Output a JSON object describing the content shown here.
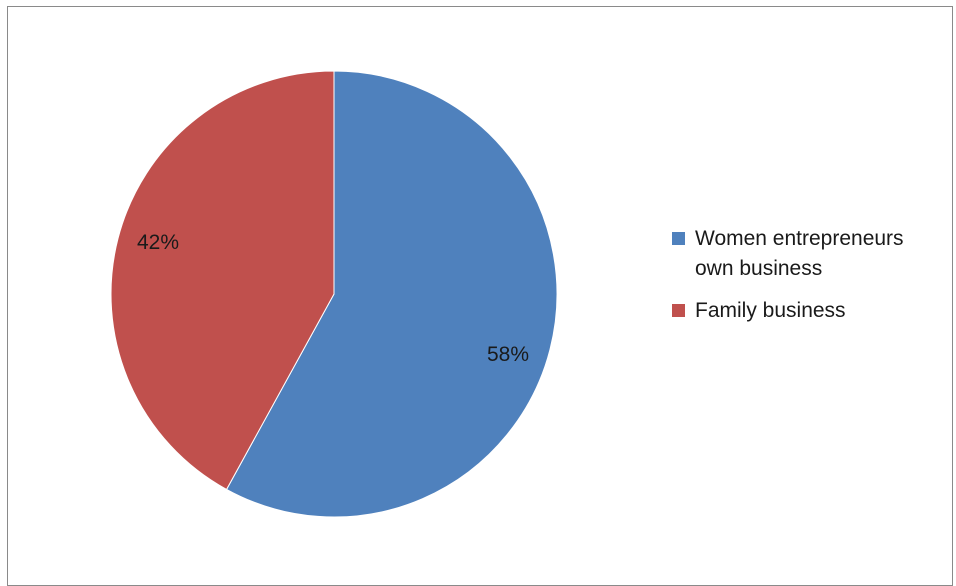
{
  "chart_data": {
    "type": "pie",
    "title": "",
    "slices": [
      {
        "name": "Women entrepreneurs own business",
        "value": 58,
        "label": "58%",
        "color": "#4F81BD"
      },
      {
        "name": "Family business",
        "value": 42,
        "label": "42%",
        "color": "#C0504D"
      }
    ],
    "legend_position": "right",
    "start_angle": "12 o'clock",
    "direction": "clockwise"
  }
}
